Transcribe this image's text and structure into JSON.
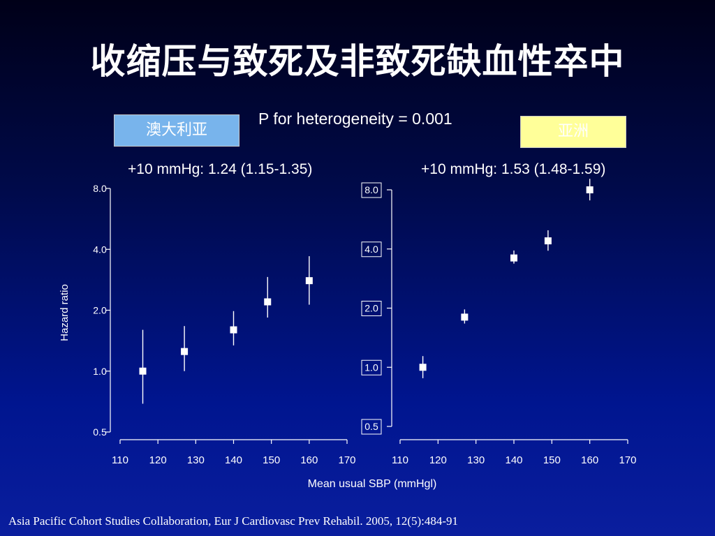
{
  "title": "收缩压与致死及非致死缺血性卒中",
  "heterogeneity_note": "P for heterogeneity = 0.001",
  "regions": {
    "left": "澳大利亚",
    "right": "亚洲"
  },
  "effects": {
    "left": "+10 mmHg: 1.24 (1.15-1.35)",
    "right": "+10 mmHg: 1.53 (1.48-1.59)"
  },
  "footer": {
    "authors": "Asia Pacific Cohort Studies Collaboration, ",
    "citation": "Eur J Cardiovasc Prev Rehabil. 2005, 12(5):484-91"
  },
  "colors": {
    "left_box": "#78b4ec",
    "right_box": "#ffff99",
    "background": "#00158f"
  },
  "chart_data": [
    {
      "type": "scatter",
      "name": "澳大利亚",
      "xlabel": "",
      "ylabel": "Hazard ratio",
      "y_scale": "log",
      "xlim": [
        110,
        170
      ],
      "ylim": [
        0.5,
        8.0
      ],
      "x_ticks": [
        "110",
        "120",
        "130",
        "140",
        "150",
        "160",
        "170"
      ],
      "y_ticks": [
        "0.5",
        "1.0",
        "2.0",
        "4.0",
        "8.0"
      ],
      "points": [
        {
          "x": 116,
          "y": 1.0,
          "low": 0.69,
          "high": 1.6
        },
        {
          "x": 127,
          "y": 1.25,
          "low": 1.0,
          "high": 1.67
        },
        {
          "x": 140,
          "y": 1.6,
          "low": 1.34,
          "high": 1.98
        },
        {
          "x": 149,
          "y": 2.2,
          "low": 1.84,
          "high": 2.92
        },
        {
          "x": 160,
          "y": 2.8,
          "low": 2.13,
          "high": 3.7
        }
      ]
    },
    {
      "type": "scatter",
      "name": "亚洲",
      "xlabel": "Mean usual SBP (mmHgl)",
      "ylabel": "",
      "y_scale": "log",
      "xlim": [
        110,
        170
      ],
      "ylim": [
        0.5,
        8.0
      ],
      "x_ticks": [
        "110",
        "120",
        "130",
        "140",
        "150",
        "160",
        "170"
      ],
      "y_ticks": [
        "0.5",
        "1.0",
        "2.0",
        "4.0",
        "8.0"
      ],
      "points": [
        {
          "x": 116,
          "y": 1.0,
          "low": 0.88,
          "high": 1.14
        },
        {
          "x": 127,
          "y": 1.8,
          "low": 1.67,
          "high": 1.97
        },
        {
          "x": 140,
          "y": 3.6,
          "low": 3.37,
          "high": 3.93
        },
        {
          "x": 149,
          "y": 4.4,
          "low": 3.92,
          "high": 4.98
        },
        {
          "x": 160,
          "y": 8.0,
          "low": 7.07,
          "high": 9.1
        }
      ]
    }
  ]
}
